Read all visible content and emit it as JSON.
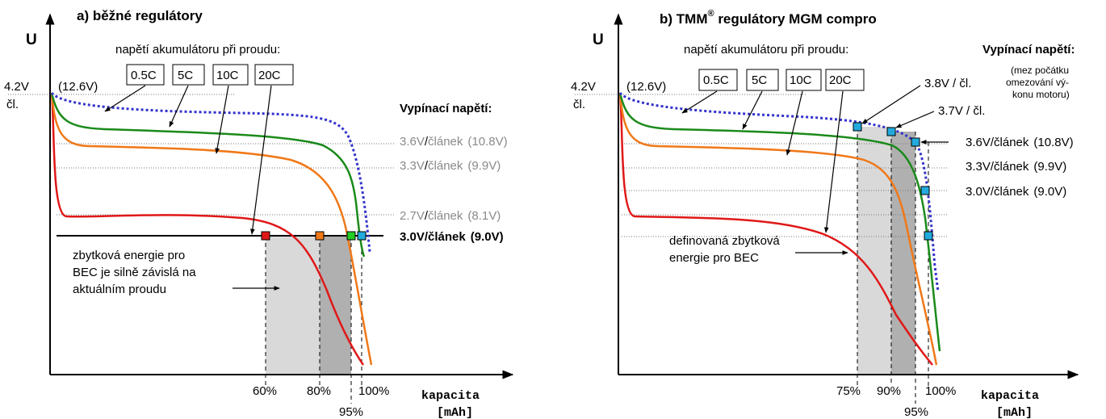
{
  "colors": {
    "c05": "#3333cc",
    "c5": "#1a8a1a",
    "c10": "#f07818",
    "c20": "#e01818",
    "grey_text": "#8a8a8a",
    "shade_light": "#d9d9d9",
    "shade_dark": "#b0b0b0",
    "marker_cyan": "#22aadd",
    "marker_green": "#22cc22",
    "marker_orange": "#f07818",
    "marker_red": "#e01818"
  },
  "left": {
    "title": "a) běžné regulátory",
    "axis_y": "U",
    "v_top": "4.2V",
    "v_top_paren": "(12.6V)",
    "cell_label": "čl.",
    "legend_title": "napětí akumulátoru při proudu:",
    "currents": [
      "0.5C",
      "5C",
      "10C",
      "20C"
    ],
    "cutoff_title": "Vypínací napětí:",
    "cutoffs": [
      {
        "v": "3.6V",
        "unit": "článek",
        "pack": "(10.8V)"
      },
      {
        "v": "3.3V",
        "unit": "článek",
        "pack": "(9.9V)"
      },
      {
        "v": "3.0V",
        "unit": "článek",
        "pack": "(9.0V)"
      },
      {
        "v": "2.7V",
        "unit": "článek",
        "pack": "(8.1V)"
      }
    ],
    "slash": "/",
    "note": [
      "zbytková energie pro",
      "BEC je silně závislá na",
      "aktuálním proudu"
    ],
    "pct": [
      "60%",
      "80%",
      "95%",
      "100%"
    ],
    "x_label": "kapacita",
    "x_unit": "[mAh]"
  },
  "right": {
    "title_a": "b) TMM",
    "title_reg": "®",
    "title_b": " regulátory MGM compro",
    "axis_y": "U",
    "v_top": "4.2V",
    "v_top_paren": "(12.6V)",
    "cell_label": "čl.",
    "legend_title": "napětí akumulátoru při proudu:",
    "currents": [
      "0.5C",
      "5C",
      "10C",
      "20C"
    ],
    "cutoff_title": "Vypínací napětí:",
    "cutoff_note": [
      "(mez počátku",
      "omezování vý-",
      "konu motoru)"
    ],
    "v38": "3.8V / čl.",
    "v37": "3.7V / čl.",
    "cutoffs": [
      {
        "v": "3.6V",
        "unit": "článek",
        "pack": "(10.8V)"
      },
      {
        "v": "3.3V",
        "unit": "článek",
        "pack": "(9.9V)"
      },
      {
        "v": "3.0V",
        "unit": "článek",
        "pack": "(9.0V)"
      }
    ],
    "slash": "/",
    "note": [
      "definovaná zbytková",
      "energie pro BEC"
    ],
    "pct": [
      "75%",
      "90%",
      "95%",
      "100%"
    ],
    "x_label": "kapacita",
    "x_unit": "[mAh]"
  }
}
